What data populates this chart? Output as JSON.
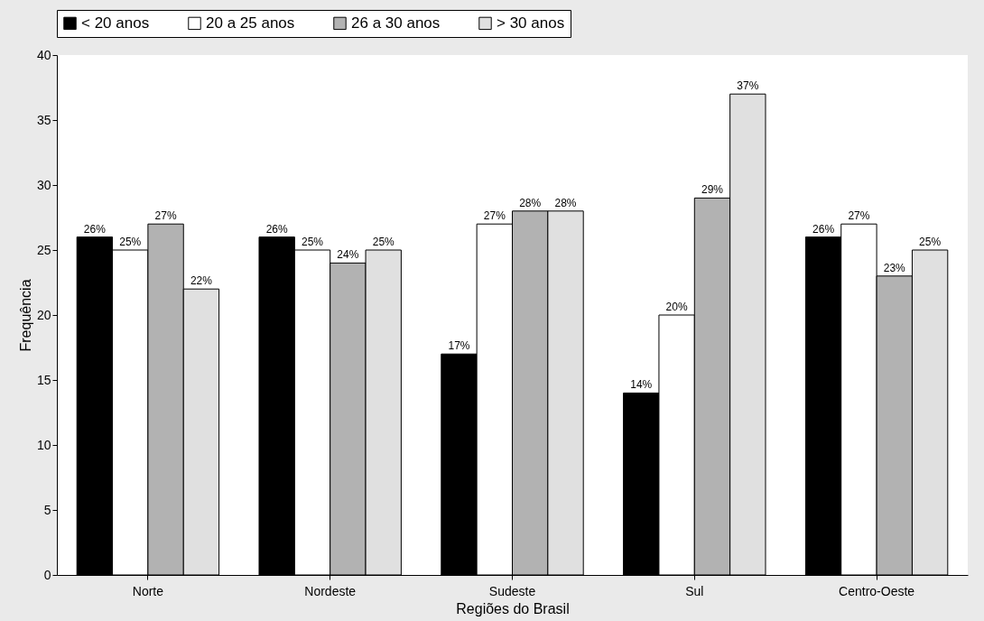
{
  "chart_data": {
    "type": "bar",
    "xlabel": "Regiões do Brasil",
    "ylabel": "Frequência",
    "categories": [
      "Norte",
      "Nordeste",
      "Sudeste",
      "Sul",
      "Centro-Oeste"
    ],
    "series": [
      {
        "name": "< 20 anos",
        "color": "#000000",
        "values": [
          26,
          26,
          17,
          14,
          26
        ],
        "value_labels": [
          "26%",
          "26%",
          "17%",
          "14%",
          "26%"
        ]
      },
      {
        "name": "20 a 25 anos",
        "color": "#ffffff",
        "values": [
          25,
          25,
          27,
          20,
          27
        ],
        "value_labels": [
          "25%",
          "25%",
          "27%",
          "20%",
          "27%"
        ]
      },
      {
        "name": "26 a 30 anos",
        "color": "#b2b2b2",
        "values": [
          27,
          24,
          28,
          29,
          23
        ],
        "value_labels": [
          "27%",
          "24%",
          "28%",
          "29%",
          "23%"
        ]
      },
      {
        "name": "> 30 anos",
        "color": "#e0e0e0",
        "values": [
          22,
          25,
          28,
          37,
          25
        ],
        "value_labels": [
          "22%",
          "25%",
          "28%",
          "37%",
          "25%"
        ]
      }
    ],
    "ylim": [
      0,
      40
    ],
    "yticks": [
      0,
      5,
      10,
      15,
      20,
      25,
      30,
      35,
      40
    ],
    "grid": false,
    "legend": "top"
  }
}
